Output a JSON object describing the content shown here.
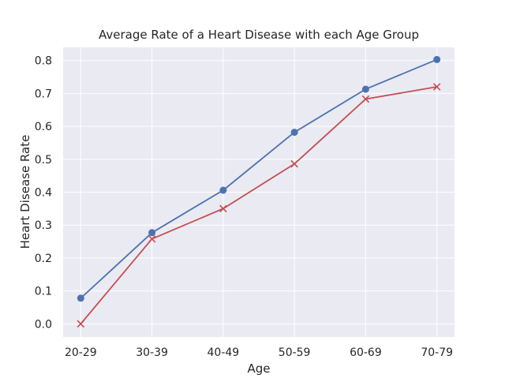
{
  "chart_data": {
    "type": "line",
    "title": "Average Rate of a Heart Disease with each Age Group",
    "xlabel": "Age",
    "ylabel": "Heart Disease Rate",
    "categories": [
      "20-29",
      "30-39",
      "40-49",
      "50-59",
      "60-69",
      "70-79"
    ],
    "ylim": [
      -0.04,
      0.84
    ],
    "yticks": [
      0.0,
      0.1,
      0.2,
      0.3,
      0.4,
      0.5,
      0.6,
      0.7,
      0.8
    ],
    "ytick_labels": [
      "0.0",
      "0.1",
      "0.2",
      "0.3",
      "0.4",
      "0.5",
      "0.6",
      "0.7",
      "0.8"
    ],
    "grid": true,
    "series": [
      {
        "values": [
          0.078,
          0.277,
          0.406,
          0.582,
          0.713,
          0.803
        ],
        "color": "#4c72b0",
        "marker": "circle"
      },
      {
        "values": [
          0.0,
          0.258,
          0.35,
          0.486,
          0.683,
          0.72
        ],
        "color": "#c44e52",
        "marker": "x"
      }
    ],
    "colors": {
      "plot_background": "#eaeaf2",
      "grid": "#ffffff",
      "text": "#262626"
    }
  }
}
